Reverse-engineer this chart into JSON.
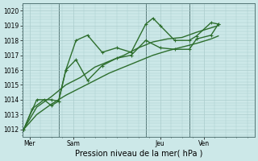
{
  "xlabel": "Pression niveau de la mer( hPa )",
  "bg_color": "#cce8e8",
  "grid_color": "#aacccc",
  "line_color": "#2d6e2d",
  "ylim": [
    1011.5,
    1020.5
  ],
  "yticks": [
    1012,
    1013,
    1014,
    1015,
    1016,
    1017,
    1018,
    1019,
    1020
  ],
  "xtick_labels": [
    "Mer",
    "Sam",
    "Jeu",
    "Ven"
  ],
  "xtick_positions": [
    0.5,
    3.5,
    9.5,
    12.5
  ],
  "xlim": [
    0,
    16
  ],
  "vline_positions": [
    2.5,
    8.5,
    11.5
  ],
  "series1_x": [
    0.1,
    0.7,
    1.5,
    2.0,
    2.5,
    3.0,
    3.7,
    4.5,
    5.5,
    6.5,
    7.5,
    8.5,
    9.0,
    9.5,
    10.5,
    11.5,
    12.0,
    13.0,
    13.5
  ],
  "series1_y": [
    1012.0,
    1013.4,
    1014.0,
    1013.6,
    1013.9,
    1016.0,
    1018.0,
    1018.35,
    1017.2,
    1017.5,
    1017.2,
    1019.1,
    1019.5,
    1019.0,
    1018.0,
    1018.0,
    1018.3,
    1019.2,
    1019.1
  ],
  "series2_x": [
    0.1,
    1.0,
    2.0,
    2.5,
    3.0,
    3.7,
    4.5,
    5.5,
    6.5,
    7.5,
    8.5,
    9.5,
    10.5,
    11.5,
    12.0,
    13.0,
    13.5
  ],
  "series2_y": [
    1012.0,
    1014.0,
    1014.0,
    1013.9,
    1016.0,
    1016.7,
    1015.3,
    1016.3,
    1016.8,
    1017.0,
    1018.0,
    1017.5,
    1017.4,
    1017.4,
    1018.1,
    1018.35,
    1019.1
  ],
  "series3_x": [
    0.1,
    1.0,
    2.0,
    3.0,
    4.0,
    5.0,
    6.0,
    7.0,
    8.0,
    9.0,
    10.0,
    11.0,
    12.0,
    13.0,
    13.5
  ],
  "series3_y": [
    1012.0,
    1013.5,
    1014.2,
    1015.0,
    1015.5,
    1016.2,
    1016.6,
    1017.0,
    1017.5,
    1017.9,
    1018.1,
    1018.2,
    1018.55,
    1018.85,
    1019.0
  ],
  "series4_x": [
    0.1,
    1.0,
    2.0,
    3.0,
    4.0,
    5.0,
    6.0,
    7.0,
    8.0,
    9.0,
    10.0,
    11.0,
    12.0,
    13.0,
    13.5
  ],
  "series4_y": [
    1012.0,
    1013.0,
    1013.7,
    1014.3,
    1014.8,
    1015.3,
    1015.8,
    1016.2,
    1016.6,
    1017.0,
    1017.3,
    1017.55,
    1017.8,
    1018.1,
    1018.3
  ],
  "marker_size": 3.0,
  "lw": 1.0
}
